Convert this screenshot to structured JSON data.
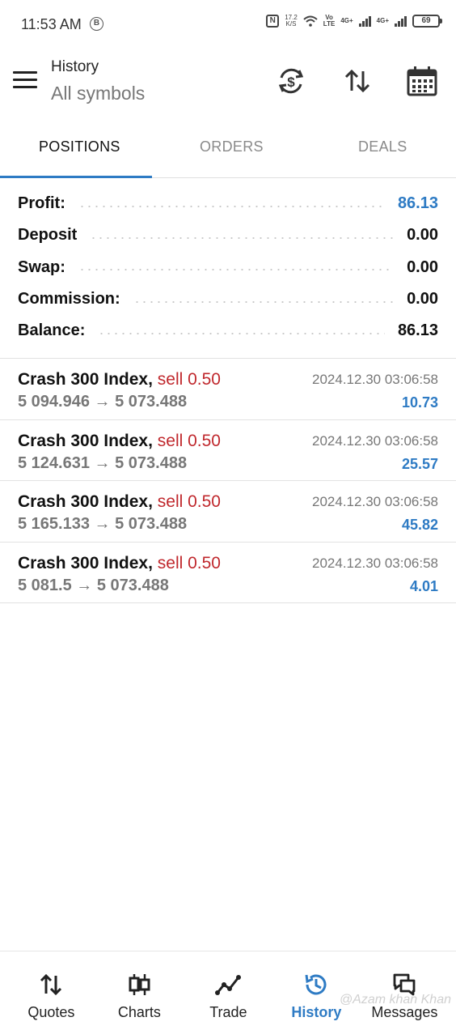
{
  "status_bar": {
    "time": "11:53 AM",
    "b_badge": "B",
    "nfc": "N",
    "speed_value": "17.2",
    "speed_unit": "K/S",
    "volte_top": "Vo",
    "volte_bottom": "LTE",
    "net1": "4G+",
    "net2": "4G+",
    "battery": "69"
  },
  "header": {
    "title": "History",
    "subtitle": "All symbols"
  },
  "tabs": {
    "positions": "POSITIONS",
    "orders": "ORDERS",
    "deals": "DEALS",
    "active": "positions"
  },
  "summary": {
    "profit_label": "Profit:",
    "profit_value": "86.13",
    "deposit_label": "Deposit",
    "deposit_value": "0.00",
    "swap_label": "Swap:",
    "swap_value": "0.00",
    "commission_label": "Commission:",
    "commission_value": "0.00",
    "balance_label": "Balance:",
    "balance_value": "86.13"
  },
  "deals": [
    {
      "symbol": "Crash 300 Index,",
      "type": "sell 0.50",
      "open_price": "5 094.946",
      "arrow": "→",
      "close_price": "5 073.488",
      "time": "2024.12.30 03:06:58",
      "profit": "10.73"
    },
    {
      "symbol": "Crash 300 Index,",
      "type": "sell 0.50",
      "open_price": "5 124.631",
      "arrow": "→",
      "close_price": "5 073.488",
      "time": "2024.12.30 03:06:58",
      "profit": "25.57"
    },
    {
      "symbol": "Crash 300 Index,",
      "type": "sell 0.50",
      "open_price": "5 165.133",
      "arrow": "→",
      "close_price": "5 073.488",
      "time": "2024.12.30 03:06:58",
      "profit": "45.82"
    },
    {
      "symbol": "Crash 300 Index,",
      "type": "sell 0.50",
      "open_price": "5 081.5",
      "arrow": "→",
      "close_price": "5 073.488",
      "time": "2024.12.30 03:06:58",
      "profit": "4.01"
    }
  ],
  "bottom_nav": {
    "quotes": "Quotes",
    "charts": "Charts",
    "trade": "Trade",
    "history": "History",
    "messages": "Messages",
    "active": "history"
  },
  "watermark": "@Azam khan Khan",
  "colors": {
    "accent": "#2e7bc4",
    "sell": "#c0282d"
  }
}
